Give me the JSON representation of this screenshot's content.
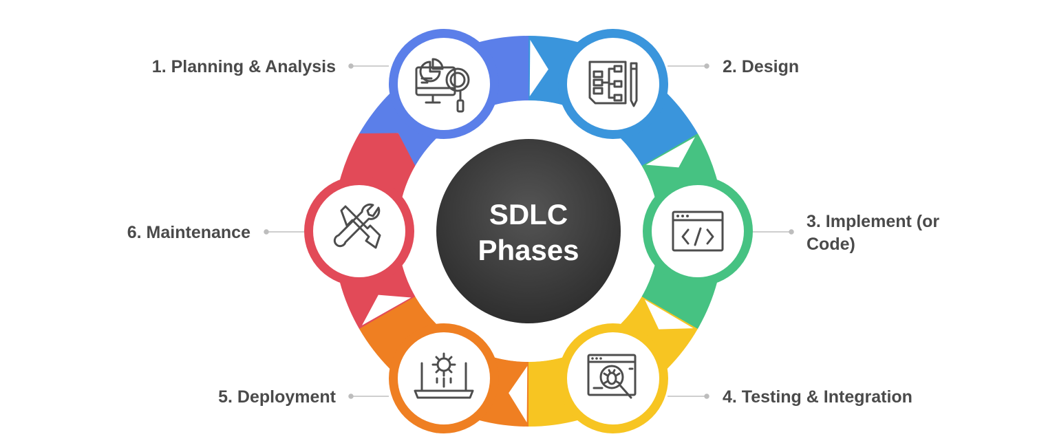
{
  "center": {
    "line1": "SDLC",
    "line2": "Phases"
  },
  "colors": {
    "planning": "#5b7fe9",
    "design": "#3a95dc",
    "implement": "#46c282",
    "testing": "#f7c522",
    "deployment": "#ef7f22",
    "maintenance": "#e24a58",
    "center_dark": "#3a3a3a",
    "label": "#4a4a4a",
    "leader": "#bdbdbd"
  },
  "phases": [
    {
      "id": "planning",
      "label": "1. Planning & Analysis",
      "icon": "monitor-chart-magnifier-icon"
    },
    {
      "id": "design",
      "label": "2. Design",
      "icon": "blueprint-pencil-icon"
    },
    {
      "id": "implement",
      "label_line1": "3. Implement (or",
      "label_line2": "Code)",
      "icon": "code-window-icon"
    },
    {
      "id": "testing",
      "label": "4. Testing & Integration",
      "icon": "bug-search-icon"
    },
    {
      "id": "deployment",
      "label": "5. Deployment",
      "icon": "laptop-gear-icon"
    },
    {
      "id": "maintenance",
      "label": "6. Maintenance",
      "icon": "wrench-screwdriver-icon"
    }
  ]
}
